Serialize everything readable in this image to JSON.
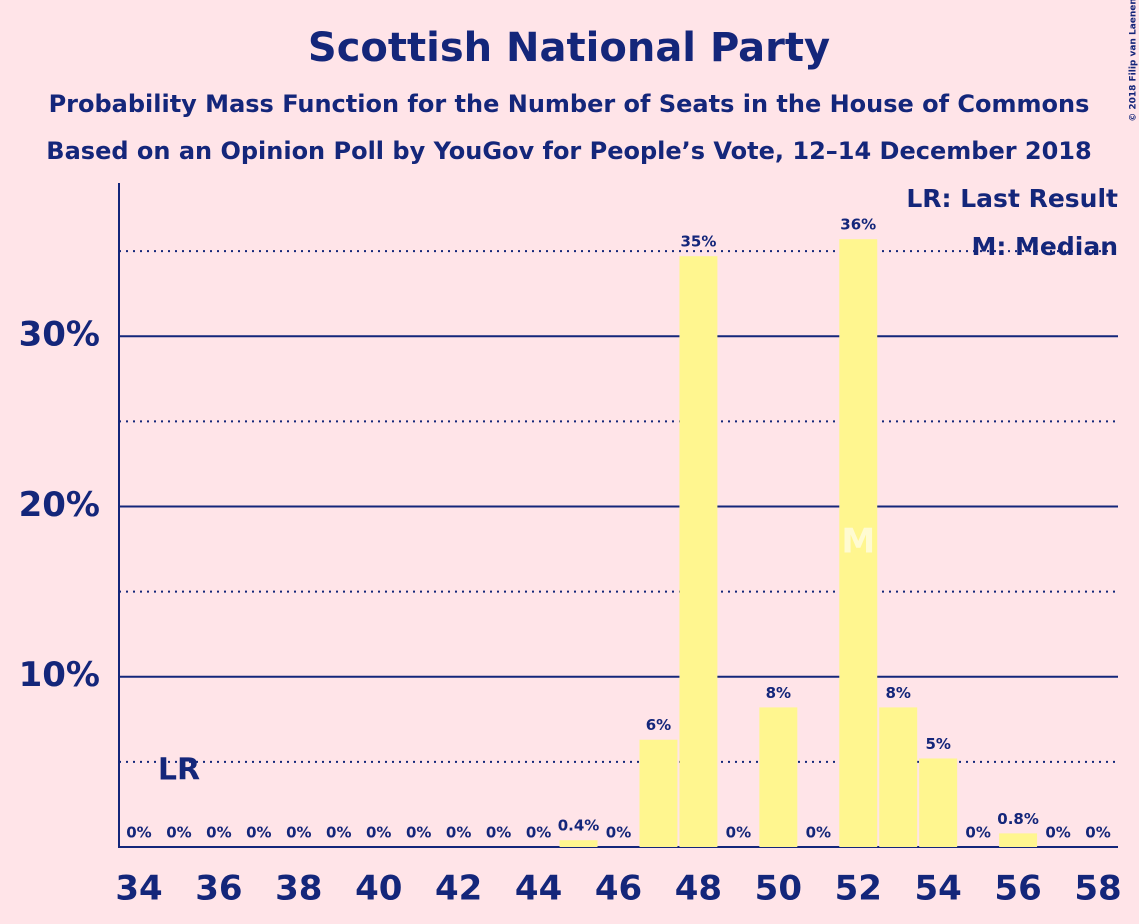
{
  "chart_data": {
    "type": "bar",
    "title": "Scottish National Party",
    "subtitle": [
      "Probability Mass Function for the Number of Seats in the House of Commons",
      "Based on an Opinion Poll by YouGov for People’s Vote, 12–14 December 2018"
    ],
    "x": [
      34,
      35,
      36,
      37,
      38,
      39,
      40,
      41,
      42,
      43,
      44,
      45,
      46,
      47,
      48,
      49,
      50,
      51,
      52,
      53,
      54,
      55,
      56,
      57,
      58
    ],
    "values": [
      0,
      0,
      0,
      0,
      0,
      0,
      0,
      0,
      0,
      0,
      0,
      0.4,
      0,
      6.3,
      34.7,
      0,
      8.2,
      0,
      35.7,
      8.2,
      5.2,
      0,
      0.8,
      0,
      0
    ],
    "value_labels": [
      "0%",
      "0%",
      "0%",
      "0%",
      "0%",
      "0%",
      "0%",
      "0%",
      "0%",
      "0%",
      "0%",
      "0.4%",
      "0%",
      "6%",
      "35%",
      "0%",
      "8%",
      "0%",
      "36%",
      "8%",
      "5%",
      "0%",
      "0.8%",
      "0%",
      "0%"
    ],
    "color": "#fff68f",
    "xlim": [
      33.5,
      58.5
    ],
    "xticks": [
      34,
      36,
      38,
      40,
      42,
      44,
      46,
      48,
      50,
      52,
      54,
      56,
      58
    ],
    "ylim": [
      0,
      39
    ],
    "yticks": [
      {
        "value": 10,
        "label": "10%"
      },
      {
        "value": 20,
        "label": "20%"
      },
      {
        "value": 30,
        "label": "30%"
      }
    ],
    "minor_yticks": [
      5,
      15,
      25,
      35
    ],
    "last_result": {
      "x": 35,
      "label": "LR"
    },
    "median": {
      "x": 52,
      "label": "M"
    },
    "legend": [
      "LR: Last Result",
      "M: Median"
    ],
    "copyright": "© 2018 Filip van Laenen"
  }
}
